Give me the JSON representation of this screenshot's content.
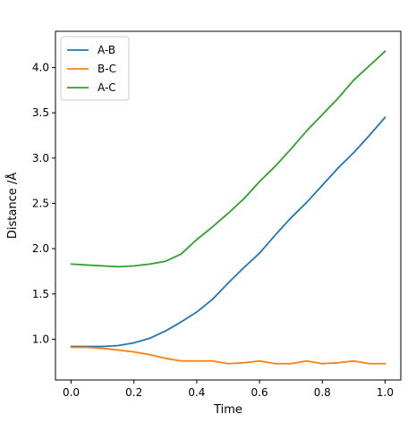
{
  "chart_data": {
    "type": "line",
    "title": "",
    "xlabel": "Time",
    "ylabel": "Distance /Å",
    "xlim": [
      -0.05,
      1.05
    ],
    "ylim": [
      0.55,
      4.4
    ],
    "xticks": [
      0.0,
      0.2,
      0.4,
      0.6,
      0.8,
      1.0
    ],
    "xtick_labels": [
      "0.0",
      "0.2",
      "0.4",
      "0.6",
      "0.8",
      "1.0"
    ],
    "yticks": [
      1.0,
      1.5,
      2.0,
      2.5,
      3.0,
      3.5,
      4.0
    ],
    "ytick_labels": [
      "1.0",
      "1.5",
      "2.0",
      "2.5",
      "3.0",
      "3.5",
      "4.0"
    ],
    "grid": false,
    "legend": "upper-left",
    "series": [
      {
        "name": "A-B",
        "color": "#1f77b4",
        "x": [
          0.0,
          0.05,
          0.1,
          0.15,
          0.2,
          0.25,
          0.3,
          0.35,
          0.4,
          0.45,
          0.5,
          0.55,
          0.6,
          0.65,
          0.7,
          0.75,
          0.8,
          0.85,
          0.9,
          0.95,
          1.0
        ],
        "y": [
          0.92,
          0.92,
          0.92,
          0.93,
          0.96,
          1.01,
          1.09,
          1.19,
          1.3,
          1.44,
          1.62,
          1.79,
          1.95,
          2.15,
          2.34,
          2.51,
          2.7,
          2.89,
          3.06,
          3.25,
          3.45
        ]
      },
      {
        "name": "B-C",
        "color": "#ff7f0e",
        "x": [
          0.0,
          0.05,
          0.1,
          0.15,
          0.2,
          0.25,
          0.3,
          0.35,
          0.4,
          0.45,
          0.5,
          0.55,
          0.6,
          0.65,
          0.7,
          0.75,
          0.8,
          0.85,
          0.9,
          0.95,
          1.0
        ],
        "y": [
          0.91,
          0.91,
          0.9,
          0.88,
          0.86,
          0.83,
          0.79,
          0.76,
          0.76,
          0.76,
          0.73,
          0.74,
          0.76,
          0.73,
          0.73,
          0.76,
          0.73,
          0.74,
          0.76,
          0.73,
          0.73
        ]
      },
      {
        "name": "A-C",
        "color": "#2ca02c",
        "x": [
          0.0,
          0.05,
          0.1,
          0.15,
          0.2,
          0.25,
          0.3,
          0.35,
          0.4,
          0.45,
          0.5,
          0.55,
          0.6,
          0.65,
          0.7,
          0.75,
          0.8,
          0.85,
          0.9,
          0.95,
          1.0
        ],
        "y": [
          1.83,
          1.82,
          1.81,
          1.8,
          1.81,
          1.83,
          1.86,
          1.94,
          2.1,
          2.24,
          2.39,
          2.55,
          2.74,
          2.91,
          3.1,
          3.3,
          3.48,
          3.66,
          3.86,
          4.02,
          4.18
        ]
      }
    ]
  }
}
